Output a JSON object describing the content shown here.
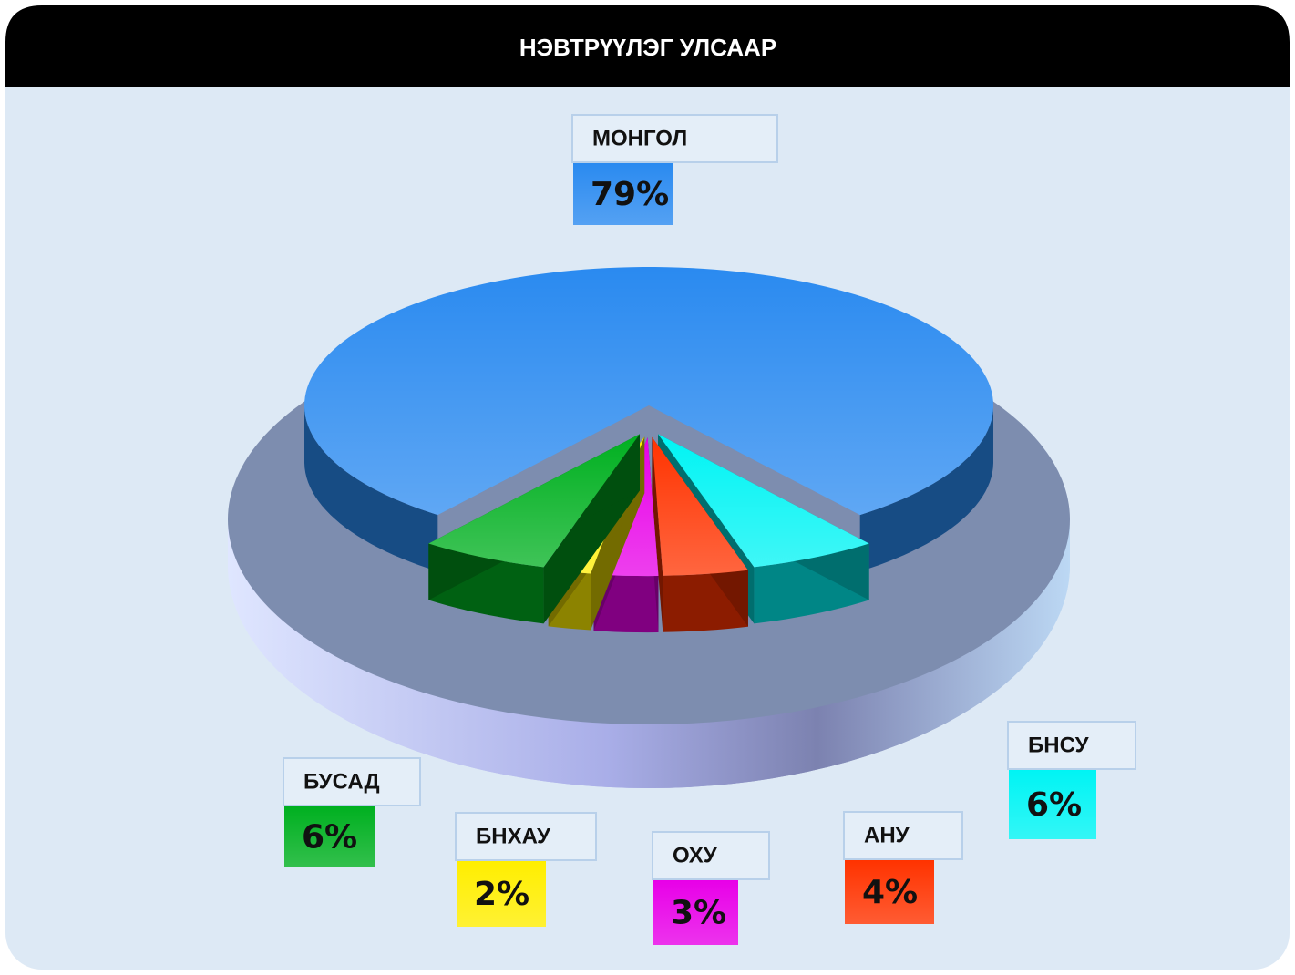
{
  "chart_data": {
    "type": "pie",
    "title": "НЭВТРҮҮЛЭГ УЛСААР",
    "categories": [
      "МОНГОЛ",
      "БНСУ",
      "АНУ",
      "ОХУ",
      "БНХАУ",
      "БУСАД"
    ],
    "values": [
      79,
      6,
      4,
      3,
      2,
      6
    ],
    "value_labels": [
      "79%",
      "6%",
      "4%",
      "3%",
      "2%",
      "6%"
    ],
    "colors": [
      "#2a8af0",
      "#00f4f4",
      "#ff3300",
      "#e800e8",
      "#ffee00",
      "#00b020"
    ]
  }
}
